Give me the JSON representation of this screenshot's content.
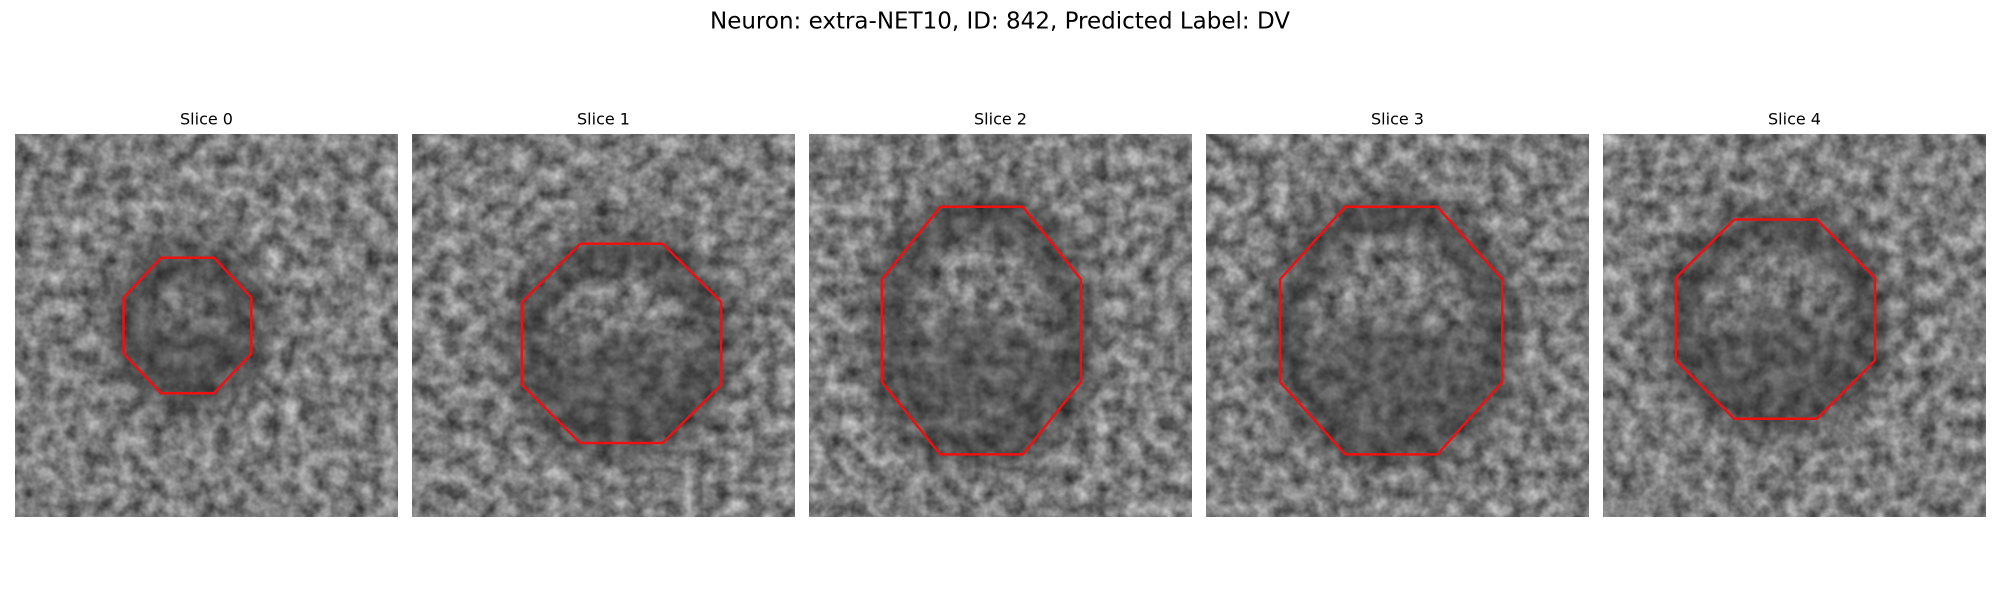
{
  "title": "Neuron: extra-NET10, ID: 842, Predicted Label: DV",
  "panels": [
    {
      "title": "Slice 0"
    },
    {
      "title": "Slice 1"
    },
    {
      "title": "Slice 2"
    },
    {
      "title": "Slice 3"
    },
    {
      "title": "Slice 4"
    }
  ]
}
